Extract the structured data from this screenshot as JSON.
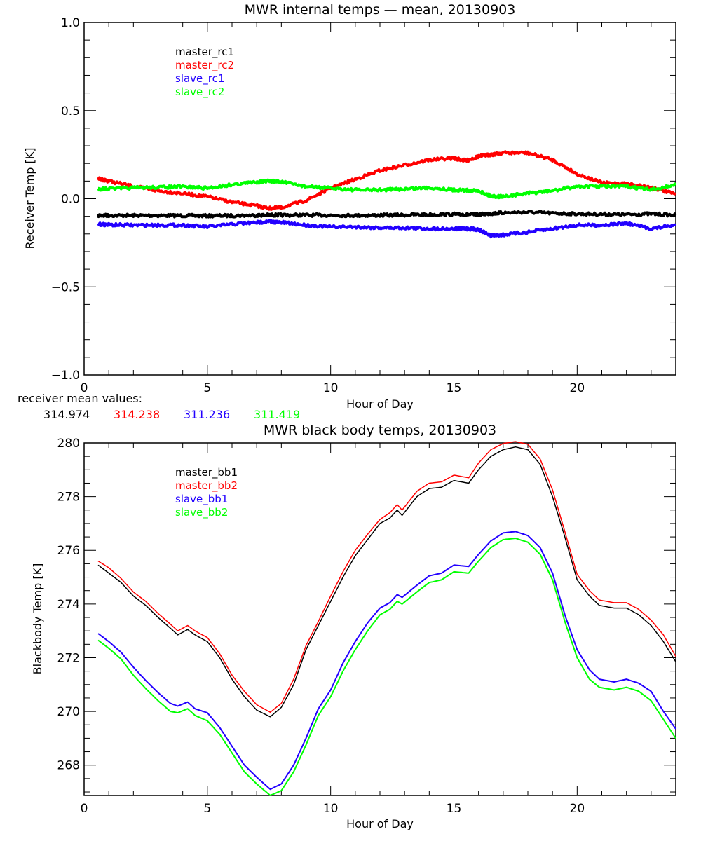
{
  "chart_data": [
    {
      "type": "line",
      "title": "MWR internal temps — mean, 20130903",
      "xlabel": "Hour of Day",
      "ylabel": "Receiver Temp [K]",
      "xlim": [
        0,
        24
      ],
      "ylim": [
        -1.0,
        1.0
      ],
      "xticks": [
        0,
        5,
        10,
        15,
        20
      ],
      "xtick_labels": [
        "0",
        "5",
        "10",
        "15",
        "20"
      ],
      "yticks": [
        -1.0,
        -0.5,
        0.0,
        0.5,
        1.0
      ],
      "ytick_labels": [
        "−1.0",
        "−0.5",
        "0.0",
        "0.5",
        "1.0"
      ],
      "x_minor_step": 1,
      "y_minor_step": 0.1,
      "grid": false,
      "legend_position": "top-left",
      "x": [
        0.57,
        1,
        2,
        3,
        4,
        5,
        6,
        7,
        7.5,
        8,
        9,
        10,
        11,
        12,
        13,
        14,
        15,
        15.5,
        16,
        16.5,
        17,
        18,
        19,
        20,
        21,
        22,
        23,
        24
      ],
      "series": [
        {
          "name": "master_rc1",
          "color": "#000000",
          "values": [
            -0.095,
            -0.095,
            -0.095,
            -0.095,
            -0.096,
            -0.097,
            -0.096,
            -0.094,
            -0.093,
            -0.093,
            -0.093,
            -0.094,
            -0.095,
            -0.094,
            -0.092,
            -0.09,
            -0.088,
            -0.09,
            -0.09,
            -0.084,
            -0.08,
            -0.076,
            -0.083,
            -0.086,
            -0.088,
            -0.09,
            -0.086,
            -0.094
          ]
        },
        {
          "name": "master_rc2",
          "color": "#ff0000",
          "values": [
            0.115,
            0.1,
            0.07,
            0.045,
            0.03,
            0.012,
            -0.02,
            -0.04,
            -0.055,
            -0.05,
            -0.01,
            0.06,
            0.11,
            0.16,
            0.19,
            0.22,
            0.23,
            0.215,
            0.24,
            0.25,
            0.26,
            0.26,
            0.22,
            0.14,
            0.09,
            0.085,
            0.065,
            0.025
          ]
        },
        {
          "name": "slave_rc1",
          "color": "#2200ff",
          "values": [
            -0.145,
            -0.148,
            -0.15,
            -0.15,
            -0.15,
            -0.16,
            -0.145,
            -0.135,
            -0.13,
            -0.135,
            -0.15,
            -0.16,
            -0.16,
            -0.165,
            -0.165,
            -0.17,
            -0.17,
            -0.17,
            -0.175,
            -0.21,
            -0.205,
            -0.19,
            -0.17,
            -0.15,
            -0.15,
            -0.14,
            -0.17,
            -0.15
          ]
        },
        {
          "name": "slave_rc2",
          "color": "#00ff00",
          "values": [
            0.055,
            0.057,
            0.062,
            0.065,
            0.068,
            0.06,
            0.08,
            0.095,
            0.1,
            0.095,
            0.07,
            0.06,
            0.05,
            0.05,
            0.055,
            0.063,
            0.05,
            0.048,
            0.045,
            0.015,
            0.012,
            0.03,
            0.045,
            0.07,
            0.07,
            0.07,
            0.05,
            0.08
          ]
        }
      ],
      "annotation": {
        "label": "receiver mean values:",
        "values": [
          {
            "text": "314.974",
            "color": "#000000"
          },
          {
            "text": "314.238",
            "color": "#ff0000"
          },
          {
            "text": "311.236",
            "color": "#2200ff"
          },
          {
            "text": "311.419",
            "color": "#00ff00"
          }
        ]
      }
    },
    {
      "type": "line",
      "title": "MWR black body temps, 20130903",
      "xlabel": "Hour of Day",
      "ylabel": "Blackbody Temp [K]",
      "xlim": [
        0,
        24
      ],
      "ylim": [
        266.87,
        280
      ],
      "xticks": [
        0,
        5,
        10,
        15,
        20
      ],
      "xtick_labels": [
        "0",
        "5",
        "10",
        "15",
        "20"
      ],
      "yticks": [
        268,
        270,
        272,
        274,
        276,
        278,
        280
      ],
      "ytick_labels": [
        "268",
        "270",
        "272",
        "274",
        "276",
        "278",
        "280"
      ],
      "x_minor_step": 1,
      "y_minor_step": 0.5,
      "grid": false,
      "legend_position": "top-left",
      "x": [
        0.57,
        1,
        1.5,
        2,
        2.5,
        3,
        3.5,
        3.8,
        4.2,
        4.5,
        5,
        5.5,
        6,
        6.5,
        7,
        7.55,
        8,
        8.5,
        9,
        9.5,
        10,
        10.5,
        11,
        11.5,
        12,
        12.4,
        12.7,
        12.9,
        13.5,
        14,
        14.5,
        15,
        15.6,
        16,
        16.5,
        17,
        17.5,
        18,
        18.5,
        19,
        19.5,
        20,
        20.5,
        20.9,
        21.5,
        22,
        22.5,
        23,
        23.5,
        24
      ],
      "series": [
        {
          "name": "master_bb1",
          "color": "#000000",
          "values": [
            275.45,
            275.15,
            274.8,
            274.3,
            273.95,
            273.5,
            273.1,
            272.85,
            273.05,
            272.85,
            272.6,
            272.0,
            271.2,
            270.55,
            270.05,
            269.8,
            270.15,
            271.0,
            272.3,
            273.2,
            274.1,
            275.0,
            275.8,
            276.4,
            277.0,
            277.2,
            277.5,
            277.3,
            278.0,
            278.3,
            278.35,
            278.6,
            278.5,
            279.0,
            279.5,
            279.75,
            279.85,
            279.75,
            279.2,
            278.0,
            276.5,
            274.9,
            274.3,
            273.95,
            273.85,
            273.85,
            273.6,
            273.2,
            272.6,
            271.85
          ]
        },
        {
          "name": "master_bb2",
          "color": "#ff0000",
          "values": [
            275.6,
            275.35,
            274.95,
            274.45,
            274.1,
            273.65,
            273.25,
            273.0,
            273.2,
            273.0,
            272.75,
            272.15,
            271.35,
            270.75,
            270.25,
            269.97,
            270.3,
            271.2,
            272.45,
            273.35,
            274.3,
            275.2,
            276.0,
            276.6,
            277.15,
            277.4,
            277.7,
            277.5,
            278.2,
            278.5,
            278.55,
            278.8,
            278.7,
            279.25,
            279.75,
            279.98,
            280.05,
            279.95,
            279.4,
            278.25,
            276.7,
            275.1,
            274.5,
            274.15,
            274.05,
            274.05,
            273.8,
            273.4,
            272.85,
            272.05
          ]
        },
        {
          "name": "slave_bb1",
          "color": "#2200ff",
          "values": [
            272.9,
            272.6,
            272.2,
            271.65,
            271.15,
            270.7,
            270.3,
            270.2,
            270.35,
            270.1,
            269.95,
            269.4,
            268.7,
            268.0,
            267.55,
            267.1,
            267.3,
            268.0,
            269.0,
            270.1,
            270.8,
            271.8,
            272.6,
            273.3,
            273.85,
            274.05,
            274.35,
            274.25,
            274.7,
            275.05,
            275.15,
            275.45,
            275.4,
            275.85,
            276.35,
            276.65,
            276.7,
            276.55,
            276.1,
            275.15,
            273.6,
            272.3,
            271.55,
            271.2,
            271.1,
            271.2,
            271.05,
            270.75,
            270.0,
            269.35
          ]
        },
        {
          "name": "slave_bb2",
          "color": "#00ff00",
          "values": [
            272.65,
            272.35,
            271.95,
            271.35,
            270.85,
            270.4,
            270.0,
            269.95,
            270.1,
            269.85,
            269.65,
            269.15,
            268.45,
            267.75,
            267.3,
            266.87,
            267.05,
            267.75,
            268.75,
            269.85,
            270.55,
            271.5,
            272.3,
            273.0,
            273.6,
            273.8,
            274.1,
            274.0,
            274.45,
            274.8,
            274.9,
            275.2,
            275.15,
            275.6,
            276.1,
            276.4,
            276.45,
            276.3,
            275.85,
            274.9,
            273.35,
            272.0,
            271.2,
            270.9,
            270.8,
            270.9,
            270.75,
            270.4,
            269.7,
            269.0
          ]
        }
      ]
    }
  ]
}
